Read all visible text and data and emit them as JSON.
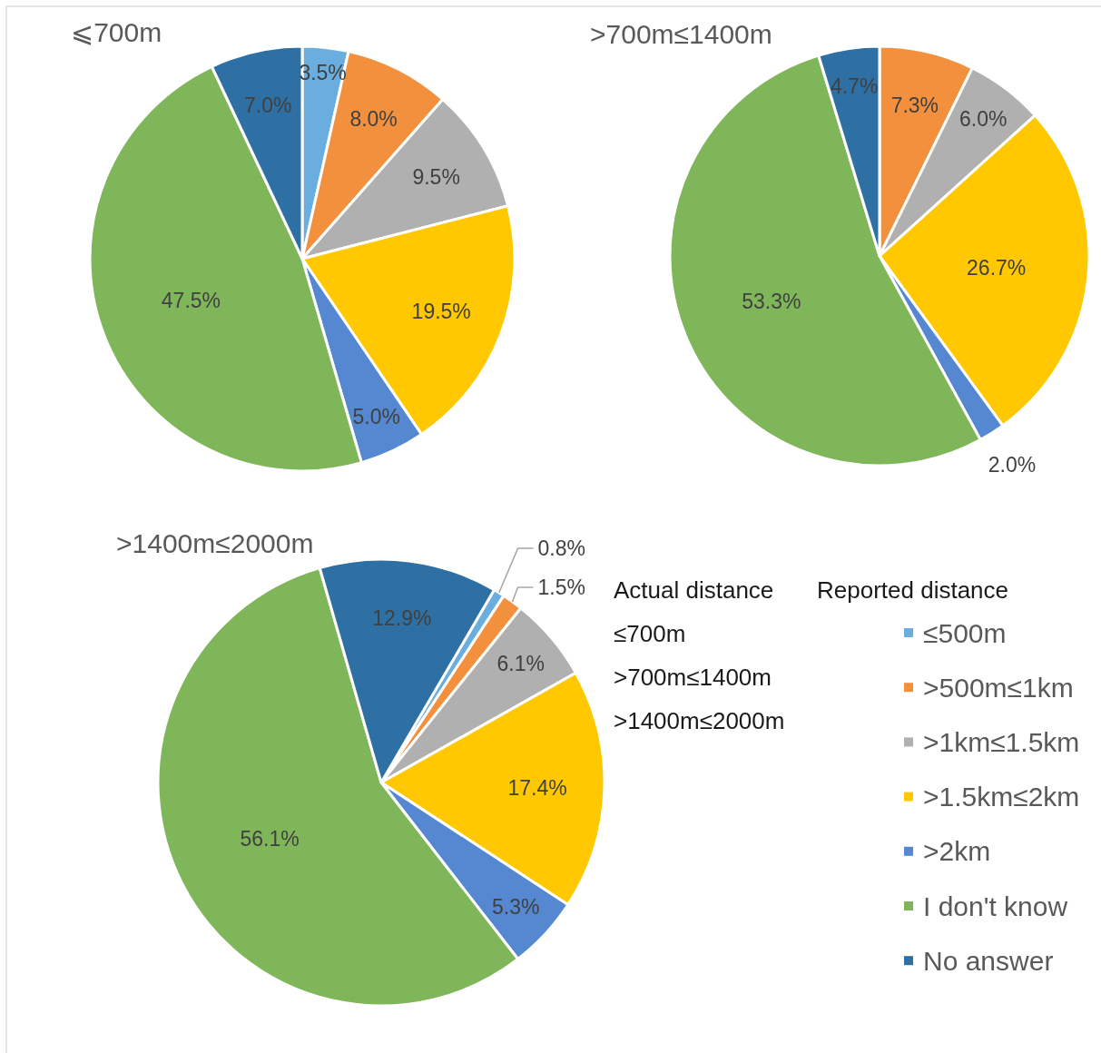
{
  "chart_data": [
    {
      "type": "pie",
      "title": "⩽700m",
      "values": [
        3.5,
        8.0,
        9.5,
        19.5,
        5.0,
        47.5,
        7.0
      ],
      "colors": [
        "#6aaddf",
        "#f2903d",
        "#b0b0b0",
        "#ffc800",
        "#5588d0",
        "#80b65a",
        "#2e70a3"
      ],
      "value_labels": [
        "3.5%",
        "8.0%",
        "9.5%",
        "19.5%",
        "5.0%",
        "47.5%",
        "7.0%"
      ]
    },
    {
      "type": "pie",
      "title": ">700m≤1400m",
      "values": [
        0,
        7.3,
        6.0,
        26.7,
        2.0,
        53.3,
        4.7
      ],
      "colors": [
        "#6aaddf",
        "#f2903d",
        "#b0b0b0",
        "#ffc800",
        "#5588d0",
        "#80b65a",
        "#2e70a3"
      ],
      "value_labels": [
        null,
        "7.3%",
        "6.0%",
        "26.7%",
        "2.0%",
        "53.3%",
        "4.7%"
      ]
    },
    {
      "type": "pie",
      "title": ">1400m≤2000m",
      "categories": [
        "≤500m",
        ">500m≤1km",
        ">1km≤1.5km",
        ">1.5km≤2km",
        ">2km",
        "I don't know",
        "No answer"
      ],
      "values": [
        0.8,
        1.5,
        6.1,
        17.4,
        5.3,
        56.1,
        12.9
      ],
      "colors": [
        "#6aaddf",
        "#f2903d",
        "#b0b0b0",
        "#ffc800",
        "#5588d0",
        "#80b65a",
        "#2e70a3"
      ],
      "value_labels": [
        "0.8%",
        "1.5%",
        "6.1%",
        "17.4%",
        "5.3%",
        "56.1%",
        "12.9%"
      ],
      "legend": "right",
      "legend_title": "Reported distance",
      "annotations": [
        "Actual distance",
        "≤700m",
        ">700m≤1400m",
        ">1400m≤2000m"
      ]
    }
  ]
}
